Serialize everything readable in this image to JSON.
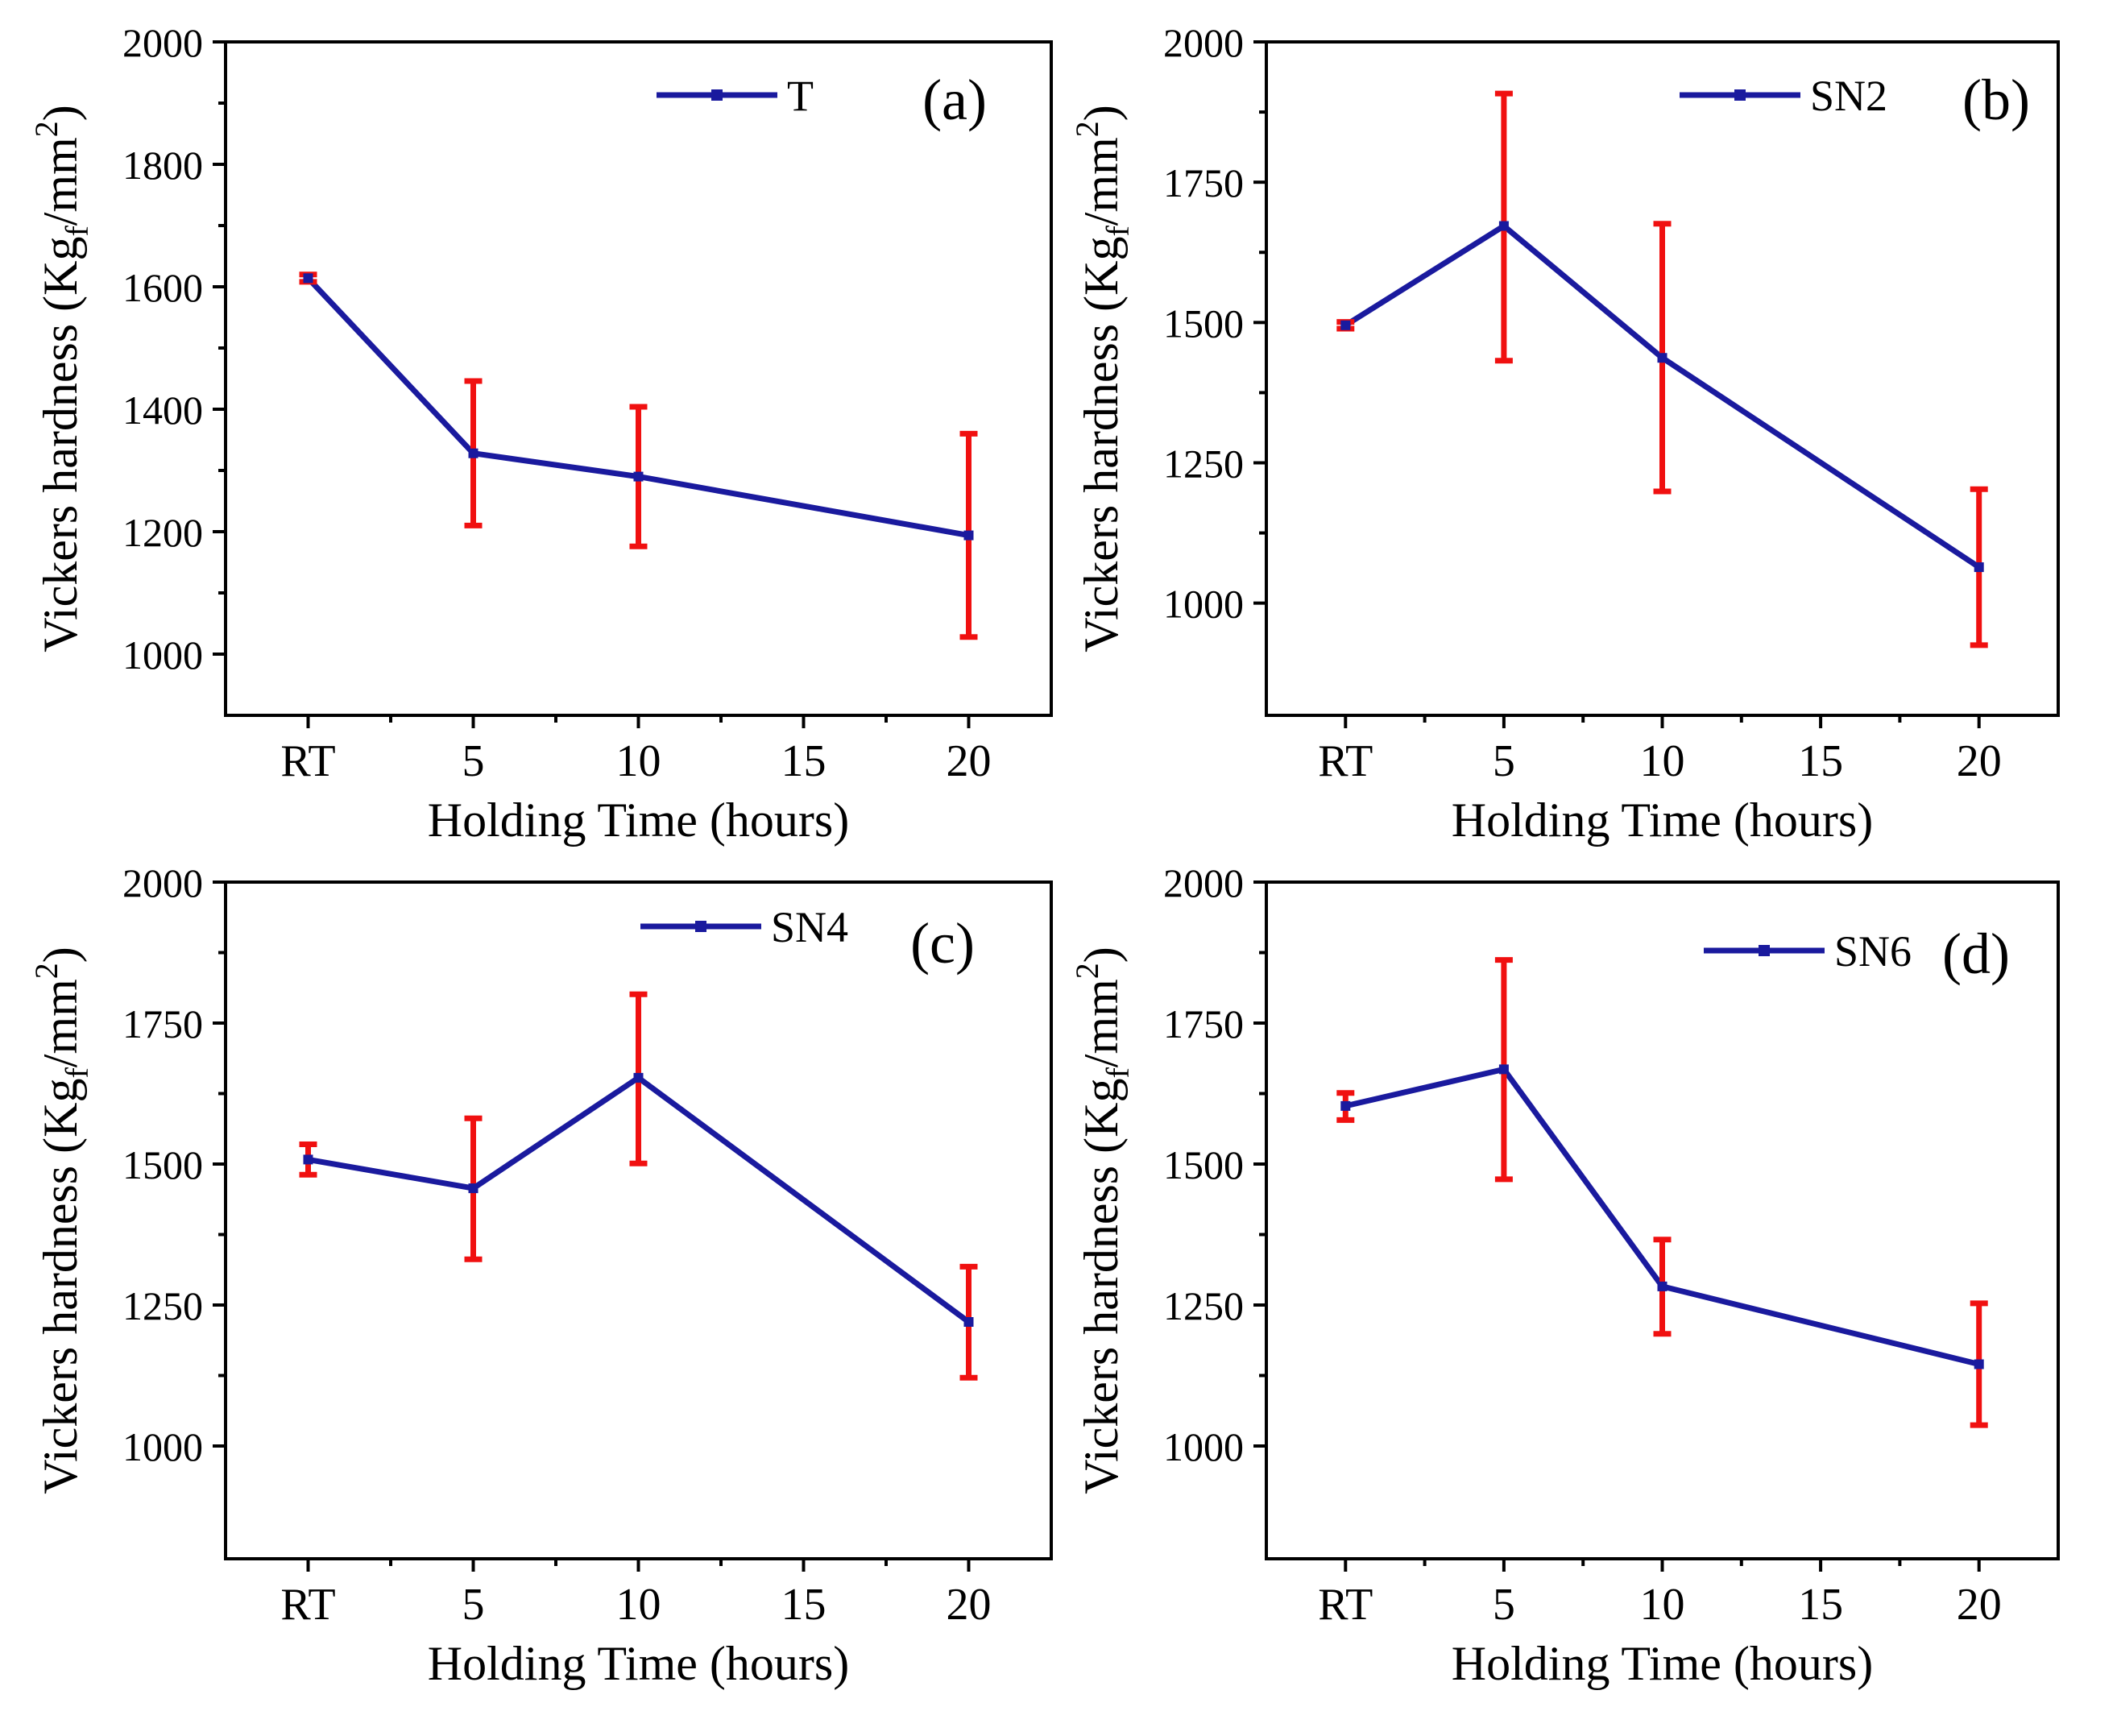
{
  "colors": {
    "line": "#1a1a9e",
    "errorbar": "#f01010",
    "axis": "#000000"
  },
  "chart_data": [
    {
      "type": "line",
      "panel_label": "(a)",
      "legend": "T",
      "xlabel": "Holding Time (hours)",
      "ylabel_main": "Vickers hardness (Kg",
      "ylabel_sub": "f",
      "ylabel_mid": "/mm",
      "ylabel_sup": "2",
      "ylabel_end": ")",
      "xlim": [
        -2.5,
        22.5
      ],
      "ylim": [
        900,
        2000
      ],
      "xticks": [
        0,
        5,
        10,
        15,
        20
      ],
      "xtick_labels": [
        "RT",
        "5",
        "10",
        "15",
        "20"
      ],
      "xminor": [
        2.5,
        7.5,
        12.5,
        17.5
      ],
      "yticks": [
        1000,
        1200,
        1400,
        1600,
        1800,
        2000
      ],
      "ytick_labels": [
        "1000",
        "1200",
        "1400",
        "1600",
        "1800",
        "2000"
      ],
      "x": [
        0,
        5,
        10,
        20
      ],
      "y": [
        1614,
        1328,
        1290,
        1194
      ],
      "err_low": [
        1608,
        1210,
        1176,
        1028
      ],
      "err_high": [
        1620,
        1446,
        1404,
        1360
      ]
    },
    {
      "type": "line",
      "panel_label": "(b)",
      "legend": "SN2",
      "xlabel": "Holding Time (hours)",
      "ylabel_main": "Vickers hardness (Kg",
      "ylabel_sub": "f",
      "ylabel_mid": "/mm",
      "ylabel_sup": "2",
      "ylabel_end": ")",
      "xlim": [
        -2.5,
        22.5
      ],
      "ylim": [
        800,
        2000
      ],
      "xticks": [
        0,
        5,
        10,
        15,
        20
      ],
      "xtick_labels": [
        "RT",
        "5",
        "10",
        "15",
        "20"
      ],
      "xminor": [
        2.5,
        7.5,
        12.5,
        17.5
      ],
      "yticks": [
        1000,
        1250,
        1500,
        1750,
        2000
      ],
      "ytick_labels": [
        "1000",
        "1250",
        "1500",
        "1750",
        "2000"
      ],
      "x": [
        0,
        5,
        10,
        20
      ],
      "y": [
        1495,
        1672,
        1437,
        1064
      ],
      "err_low": [
        1489,
        1432,
        1199,
        925
      ],
      "err_high": [
        1501,
        1908,
        1676,
        1203
      ]
    },
    {
      "type": "line",
      "panel_label": "(c)",
      "legend": "SN4",
      "xlabel": "Holding Time (hours)",
      "ylabel_main": "Vickers hardness (Kg",
      "ylabel_sub": "f",
      "ylabel_mid": "/mm",
      "ylabel_sup": "2",
      "ylabel_end": ")",
      "xlim": [
        -2.5,
        22.5
      ],
      "ylim": [
        800,
        2000
      ],
      "xticks": [
        0,
        5,
        10,
        15,
        20
      ],
      "xtick_labels": [
        "RT",
        "5",
        "10",
        "15",
        "20"
      ],
      "xminor": [
        2.5,
        7.5,
        12.5,
        17.5
      ],
      "yticks": [
        1000,
        1250,
        1500,
        1750,
        2000
      ],
      "ytick_labels": [
        "1000",
        "1250",
        "1500",
        "1750",
        "2000"
      ],
      "x": [
        0,
        5,
        10,
        20
      ],
      "y": [
        1508,
        1457,
        1653,
        1220
      ],
      "err_low": [
        1481,
        1331,
        1501,
        1121
      ],
      "err_high": [
        1535,
        1581,
        1801,
        1318
      ]
    },
    {
      "type": "line",
      "panel_label": "(d)",
      "legend": "SN6",
      "xlabel": "Holding Time (hours)",
      "ylabel_main": "Vickers hardness (Kg",
      "ylabel_sub": "f",
      "ylabel_mid": "/mm",
      "ylabel_sup": "2",
      "ylabel_end": ")",
      "xlim": [
        -2.5,
        22.5
      ],
      "ylim": [
        800,
        2000
      ],
      "xticks": [
        0,
        5,
        10,
        15,
        20
      ],
      "xtick_labels": [
        "RT",
        "5",
        "10",
        "15",
        "20"
      ],
      "xminor": [
        2.5,
        7.5,
        12.5,
        17.5
      ],
      "yticks": [
        1000,
        1250,
        1500,
        1750,
        2000
      ],
      "ytick_labels": [
        "1000",
        "1250",
        "1500",
        "1750",
        "2000"
      ],
      "x": [
        0,
        5,
        10,
        20
      ],
      "y": [
        1603,
        1668,
        1283,
        1145
      ],
      "err_low": [
        1578,
        1473,
        1199,
        1037
      ],
      "err_high": [
        1626,
        1862,
        1366,
        1253
      ]
    }
  ]
}
